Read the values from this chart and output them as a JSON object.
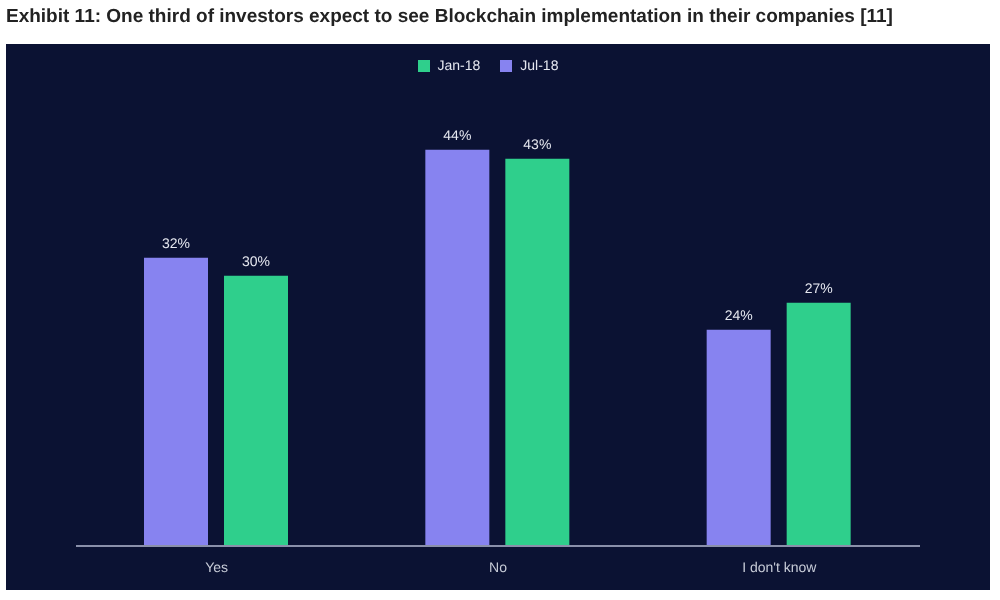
{
  "chart_data": {
    "type": "bar",
    "title": "Exhibit 11: One third of investors expect to see Blockchain implementation in their companies [11]",
    "categories": [
      "Yes",
      "No",
      "I don't know"
    ],
    "series": [
      {
        "name": "Jul-18",
        "color": "#8783f0",
        "values": [
          32,
          44,
          24
        ],
        "value_labels": [
          "32%",
          "44%",
          "24%"
        ]
      },
      {
        "name": "Jan-18",
        "color": "#2fcf8c",
        "values": [
          30,
          43,
          27
        ],
        "value_labels": [
          "30%",
          "43%",
          "27%"
        ]
      }
    ],
    "legend": "top",
    "grid": false,
    "tick_labels": "x"
  }
}
